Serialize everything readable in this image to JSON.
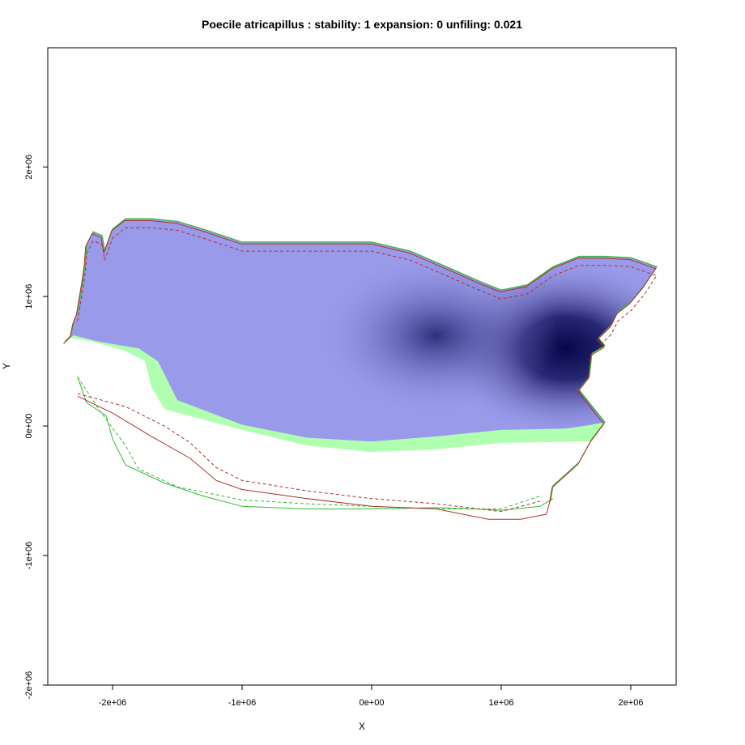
{
  "chart_data": {
    "type": "heatmap",
    "title": "Poecile atricapillus : stability: 1 expansion: 0 unfiling: 0.021",
    "xlabel": "X",
    "ylabel": "Y",
    "xlim": [
      -2500000,
      2350000
    ],
    "ylim": [
      -2000000,
      2920000
    ],
    "x_ticks": [
      {
        "value": -2000000,
        "label": "-2e+06"
      },
      {
        "value": -1000000,
        "label": "-1e+06"
      },
      {
        "value": 0,
        "label": "0e+00"
      },
      {
        "value": 1000000,
        "label": "1e+06"
      },
      {
        "value": 2000000,
        "label": "2e+06"
      }
    ],
    "y_ticks": [
      {
        "value": -2000000,
        "label": "-2e+06"
      },
      {
        "value": -1000000,
        "label": "-1e+06"
      },
      {
        "value": 0,
        "label": "0e+00"
      },
      {
        "value": 1000000,
        "label": "1e+06"
      },
      {
        "value": 2000000,
        "label": "2e+06"
      }
    ],
    "layers": {
      "density_fill_color": "#9a9aea",
      "density_dark_color": "#0c0c55",
      "stability_fill_color": "#b0ffb0",
      "contour_colors": {
        "green": "#33bb33",
        "red": "#b03030"
      }
    },
    "density_hotspots": [
      {
        "x": 1500000,
        "y": 600000,
        "intensity": 1.0
      },
      {
        "x": 500000,
        "y": 700000,
        "intensity": 0.75
      }
    ]
  }
}
